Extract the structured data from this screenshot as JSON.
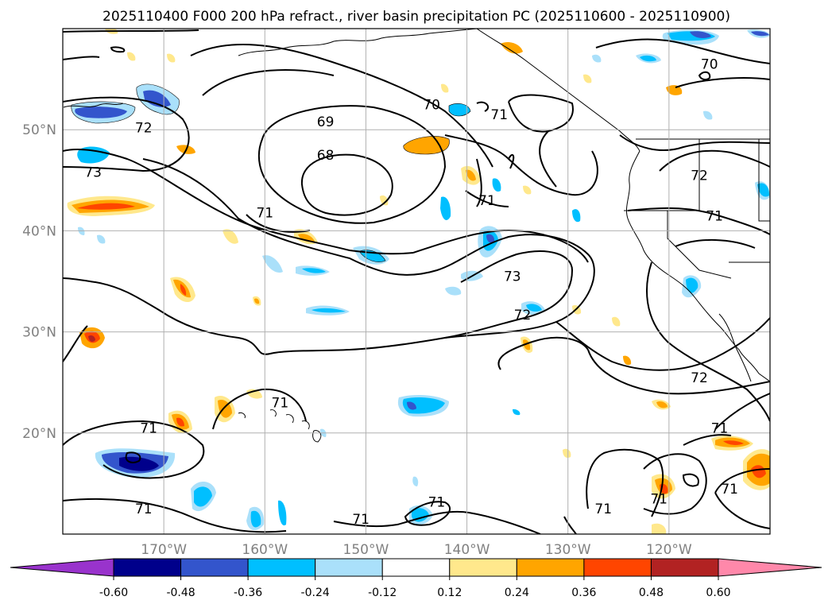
{
  "title": "2025110400 F000 200 hPa refract., river basin precipitation PC (2025110600 - 2025110900)",
  "map": {
    "lon_range": [
      -180,
      -110
    ],
    "lat_range": [
      10,
      60
    ],
    "lat_labels": [
      {
        "value": 50,
        "text": "50°N"
      },
      {
        "value": 40,
        "text": "40°N"
      },
      {
        "value": 30,
        "text": "30°N"
      },
      {
        "value": 20,
        "text": "20°N"
      }
    ],
    "lon_labels": [
      {
        "value": -170,
        "text": "170°W"
      },
      {
        "value": -160,
        "text": "160°W"
      },
      {
        "value": -150,
        "text": "150°W"
      },
      {
        "value": -140,
        "text": "140°W"
      },
      {
        "value": -130,
        "text": "130°W"
      },
      {
        "value": -120,
        "text": "120°W"
      }
    ],
    "contour_labels": [
      {
        "text": "69",
        "lon": -154,
        "lat": 50.8
      },
      {
        "text": "68",
        "lon": -154,
        "lat": 47.5
      },
      {
        "text": "70",
        "lon": -143.5,
        "lat": 52.5
      },
      {
        "text": "71",
        "lon": -136.8,
        "lat": 51.5
      },
      {
        "text": "72",
        "lon": -172,
        "lat": 50.2
      },
      {
        "text": "73",
        "lon": -177,
        "lat": 45.8
      },
      {
        "text": "71",
        "lon": -160,
        "lat": 41.8
      },
      {
        "text": "71",
        "lon": -138,
        "lat": 43
      },
      {
        "text": "73",
        "lon": -135.5,
        "lat": 35.5
      },
      {
        "text": "72",
        "lon": -134.5,
        "lat": 31.7
      },
      {
        "text": "70",
        "lon": -116,
        "lat": 56.5
      },
      {
        "text": "72",
        "lon": -117,
        "lat": 45.5
      },
      {
        "text": "71",
        "lon": -115.5,
        "lat": 41.5
      },
      {
        "text": "72",
        "lon": -117,
        "lat": 25.5
      },
      {
        "text": "71",
        "lon": -115,
        "lat": 20.5
      },
      {
        "text": "71",
        "lon": -171.5,
        "lat": 20.5
      },
      {
        "text": "71",
        "lon": -158.5,
        "lat": 23
      },
      {
        "text": "71",
        "lon": -172,
        "lat": 12.5
      },
      {
        "text": "71",
        "lon": -150.5,
        "lat": 11.5
      },
      {
        "text": "71",
        "lon": -143,
        "lat": 13.2
      },
      {
        "text": "71",
        "lon": -126.5,
        "lat": 12.5
      },
      {
        "text": "71",
        "lon": -121,
        "lat": 13.5
      },
      {
        "text": "71",
        "lon": -114,
        "lat": 14.5
      }
    ]
  },
  "colorbar": {
    "levels": [
      "-0.60",
      "-0.48",
      "-0.36",
      "-0.24",
      "-0.12",
      "0.12",
      "0.24",
      "0.36",
      "0.48",
      "0.60"
    ],
    "colors": {
      "below": "#9933cc",
      "c1": "#00008b",
      "c2": "#3355cc",
      "c3": "#00bfff",
      "c4": "#aae0fa",
      "c5": "#ffffff",
      "c6": "#ffe88c",
      "c7": "#ffa500",
      "c8": "#ff4500",
      "c9": "#b22222",
      "above": "#ff88aa"
    }
  }
}
